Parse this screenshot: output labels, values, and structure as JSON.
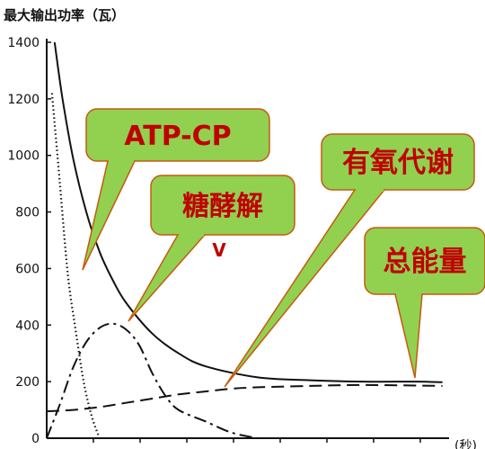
{
  "chart_data": {
    "type": "line",
    "ylabel": "最大输出功率（瓦）",
    "xlabel_partial": "(秒)",
    "ylim": [
      0,
      1400
    ],
    "xlim": [
      0,
      160
    ],
    "y_ticks": [
      "0",
      "200",
      "400",
      "600",
      "800",
      "1000",
      "1200",
      "1400"
    ],
    "series": [
      {
        "name": "总能量",
        "style": "solid",
        "x": [
          3,
          6,
          10,
          15,
          20,
          25,
          30,
          40,
          50,
          60,
          80,
          100,
          120,
          140,
          150
        ],
        "y": [
          1400,
          1200,
          990,
          800,
          660,
          560,
          480,
          370,
          300,
          255,
          215,
          205,
          200,
          200,
          198
        ]
      },
      {
        "name": "ATP-CP",
        "style": "dotted",
        "x": [
          2,
          5,
          8,
          11,
          14,
          17,
          20
        ],
        "y": [
          1220,
          900,
          580,
          380,
          200,
          80,
          0
        ]
      },
      {
        "name": "糖酵解",
        "style": "dash-dot",
        "x": [
          0,
          5,
          10,
          15,
          20,
          25,
          30,
          35,
          40,
          45,
          50,
          60,
          70,
          80
        ],
        "y": [
          0,
          120,
          250,
          340,
          390,
          405,
          385,
          330,
          230,
          150,
          100,
          60,
          20,
          0
        ]
      },
      {
        "name": "有氧代谢",
        "style": "dashed",
        "x": [
          0,
          10,
          20,
          30,
          40,
          50,
          60,
          70,
          80,
          100,
          120,
          150
        ],
        "y": [
          95,
          100,
          110,
          125,
          140,
          155,
          165,
          175,
          180,
          185,
          188,
          185
        ]
      }
    ],
    "annotations": [
      {
        "text": "ATP-CP"
      },
      {
        "text": "糖酵解"
      },
      {
        "text": "V"
      },
      {
        "text": "有氧代谢"
      },
      {
        "text": "总能量"
      }
    ],
    "grid": false,
    "legend": "none"
  },
  "colors": {
    "callout_fill": "#92d050",
    "callout_stroke": "#c55a11",
    "callout_text": "#c00000",
    "curve": "#111111"
  }
}
